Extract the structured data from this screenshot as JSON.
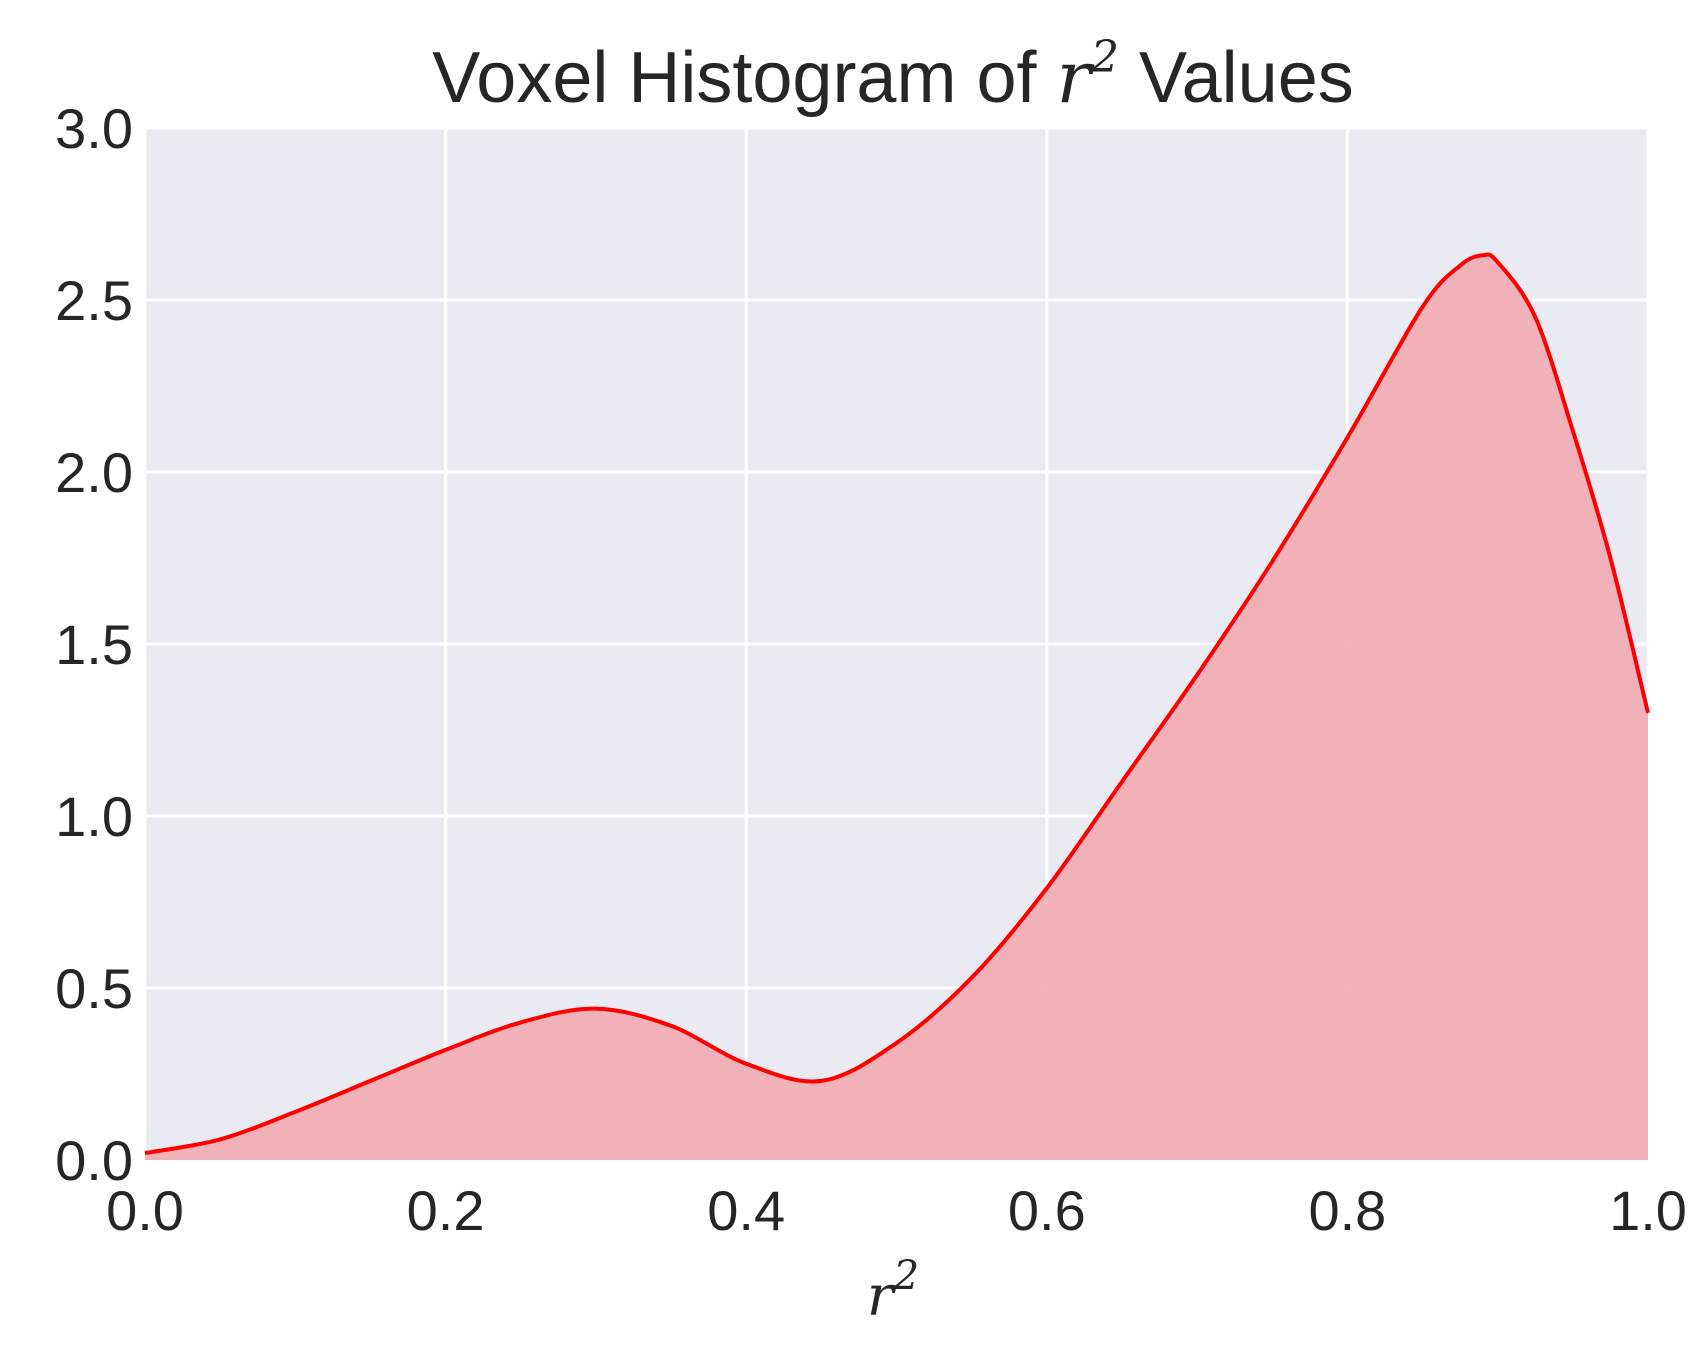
{
  "chart_data": {
    "type": "area",
    "title": {
      "prefix": "Voxel Histogram of ",
      "math_base": "r",
      "math_exp": "2",
      "suffix": " Values"
    },
    "xlabel": {
      "base": "r",
      "exp": "2"
    },
    "ylabel": "",
    "xlim": [
      0.0,
      1.0
    ],
    "ylim": [
      0.0,
      3.0
    ],
    "x_ticks": [
      "0.0",
      "0.2",
      "0.4",
      "0.6",
      "0.8",
      "1.0"
    ],
    "y_ticks": [
      "0.0",
      "0.5",
      "1.0",
      "1.5",
      "2.0",
      "2.5",
      "3.0"
    ],
    "grid": true,
    "legend": "none",
    "colors": {
      "background": "#eaeaf2",
      "grid": "#ffffff",
      "line": "#ff0000",
      "fill": "#f0aeb5"
    },
    "series": [
      {
        "x": [
          0.0,
          0.05,
          0.1,
          0.15,
          0.2,
          0.25,
          0.3,
          0.35,
          0.4,
          0.45,
          0.5,
          0.55,
          0.6,
          0.65,
          0.7,
          0.75,
          0.8,
          0.85,
          0.875,
          0.89,
          0.9,
          0.925,
          0.95,
          0.975,
          1.0
        ],
        "y": [
          0.02,
          0.06,
          0.14,
          0.23,
          0.32,
          0.4,
          0.44,
          0.39,
          0.28,
          0.23,
          0.34,
          0.53,
          0.79,
          1.1,
          1.41,
          1.74,
          2.1,
          2.48,
          2.6,
          2.63,
          2.61,
          2.45,
          2.12,
          1.75,
          1.3
        ]
      }
    ]
  }
}
